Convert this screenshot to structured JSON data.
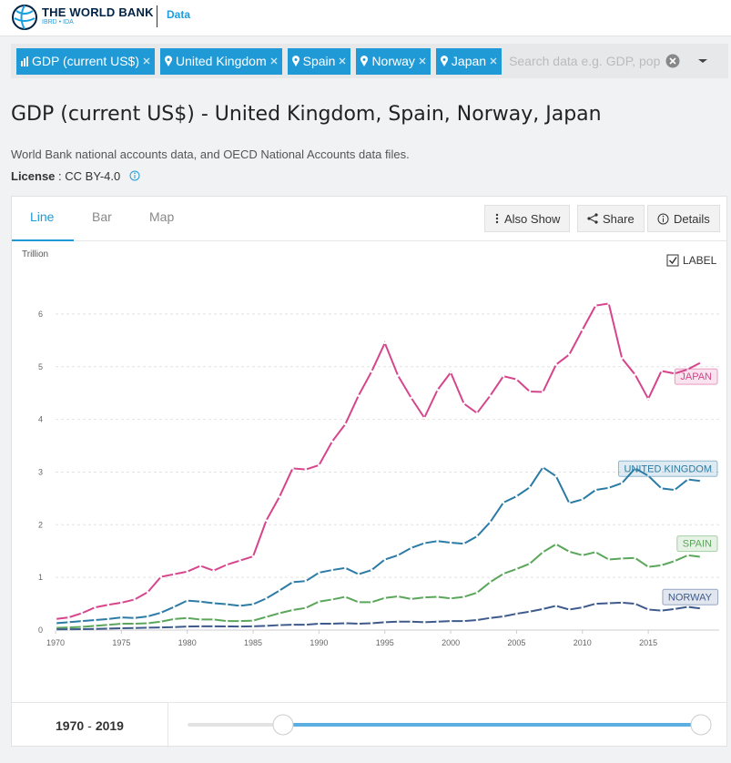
{
  "header": {
    "brand": "THE WORLD BANK",
    "brand_sub": "IBRD • IDA",
    "section": "Data"
  },
  "filters": [
    "GDP (current US$)",
    "United Kingdom",
    "Spain",
    "Norway",
    "Japan"
  ],
  "search_placeholder": "Search data e.g. GDP, pop",
  "title": "GDP (current US$) - United Kingdom, Spain, Norway, Japan",
  "source": "World Bank national accounts data, and OECD National Accounts data files.",
  "license": {
    "label": "License",
    "separator": ":",
    "value": "CC BY-4.0"
  },
  "tabs": [
    "Line",
    "Bar",
    "Map"
  ],
  "actions": [
    "Also Show",
    "Share",
    "Details"
  ],
  "chart_data": {
    "type": "line",
    "y_label": "Trillion",
    "label_toggle": "LABEL",
    "x": [
      1970,
      1971,
      1972,
      1973,
      1974,
      1975,
      1976,
      1977,
      1978,
      1979,
      1980,
      1981,
      1982,
      1983,
      1984,
      1985,
      1986,
      1987,
      1988,
      1989,
      1990,
      1991,
      1992,
      1993,
      1994,
      1995,
      1996,
      1997,
      1998,
      1999,
      2000,
      2001,
      2002,
      2003,
      2004,
      2005,
      2006,
      2007,
      2008,
      2009,
      2010,
      2011,
      2012,
      2013,
      2014,
      2015,
      2016,
      2017,
      2018,
      2019
    ],
    "xlim": [
      1970,
      2019
    ],
    "xticks": [
      1970,
      1975,
      1980,
      1985,
      1990,
      1995,
      2000,
      2005,
      2010,
      2015
    ],
    "ylim": [
      0,
      6.5
    ],
    "yticks": [
      0,
      1,
      2,
      3,
      4,
      5,
      6
    ],
    "grid": true,
    "series": [
      {
        "name": "JAPAN",
        "color": "#d6458c",
        "values": [
          0.21,
          0.24,
          0.32,
          0.43,
          0.48,
          0.52,
          0.58,
          0.72,
          1.01,
          1.06,
          1.11,
          1.22,
          1.13,
          1.24,
          1.32,
          1.4,
          2.08,
          2.53,
          3.07,
          3.05,
          3.13,
          3.58,
          3.91,
          4.45,
          4.91,
          5.45,
          4.83,
          4.41,
          4.03,
          4.56,
          4.89,
          4.3,
          4.12,
          4.45,
          4.82,
          4.76,
          4.53,
          4.52,
          5.04,
          5.23,
          5.7,
          6.16,
          6.2,
          5.16,
          4.85,
          4.39,
          4.92,
          4.87,
          4.95,
          5.08
        ]
      },
      {
        "name": "UNITED KINGDOM",
        "color": "#2b7ba6",
        "values": [
          0.13,
          0.15,
          0.17,
          0.19,
          0.21,
          0.24,
          0.23,
          0.26,
          0.33,
          0.44,
          0.56,
          0.54,
          0.51,
          0.49,
          0.46,
          0.49,
          0.6,
          0.75,
          0.91,
          0.93,
          1.09,
          1.14,
          1.18,
          1.06,
          1.14,
          1.34,
          1.42,
          1.56,
          1.65,
          1.69,
          1.66,
          1.64,
          1.78,
          2.05,
          2.42,
          2.54,
          2.71,
          3.09,
          2.92,
          2.41,
          2.48,
          2.66,
          2.7,
          2.79,
          3.07,
          2.93,
          2.69,
          2.66,
          2.86,
          2.83
        ]
      },
      {
        "name": "SPAIN",
        "color": "#5aa65a",
        "values": [
          0.04,
          0.05,
          0.06,
          0.08,
          0.1,
          0.12,
          0.12,
          0.13,
          0.16,
          0.21,
          0.23,
          0.2,
          0.2,
          0.17,
          0.17,
          0.18,
          0.25,
          0.32,
          0.38,
          0.42,
          0.54,
          0.58,
          0.63,
          0.53,
          0.53,
          0.61,
          0.64,
          0.59,
          0.62,
          0.63,
          0.6,
          0.63,
          0.71,
          0.91,
          1.07,
          1.16,
          1.26,
          1.48,
          1.63,
          1.49,
          1.42,
          1.48,
          1.34,
          1.36,
          1.37,
          1.2,
          1.23,
          1.31,
          1.42,
          1.39
        ]
      },
      {
        "name": "NORWAY",
        "color": "#3e5a8c",
        "values": [
          0.013,
          0.015,
          0.018,
          0.022,
          0.028,
          0.035,
          0.039,
          0.045,
          0.049,
          0.057,
          0.068,
          0.072,
          0.071,
          0.069,
          0.068,
          0.071,
          0.079,
          0.094,
          0.101,
          0.102,
          0.12,
          0.12,
          0.13,
          0.12,
          0.13,
          0.15,
          0.16,
          0.16,
          0.15,
          0.16,
          0.17,
          0.17,
          0.19,
          0.23,
          0.26,
          0.31,
          0.35,
          0.4,
          0.46,
          0.39,
          0.43,
          0.5,
          0.51,
          0.52,
          0.5,
          0.39,
          0.37,
          0.4,
          0.44,
          0.41
        ]
      }
    ]
  },
  "range": {
    "from": "1970",
    "separator": "-",
    "to": "2019"
  }
}
